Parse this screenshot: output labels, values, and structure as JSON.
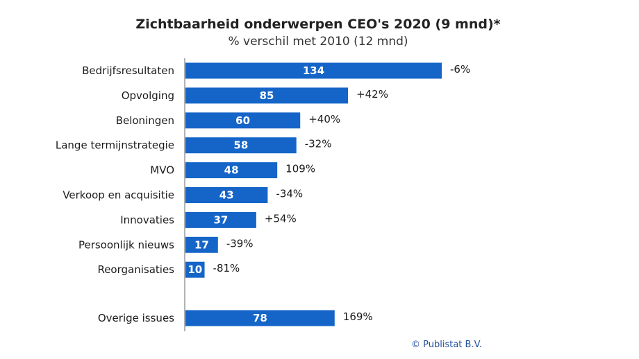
{
  "chart_data": {
    "type": "bar",
    "orientation": "horizontal",
    "title": "Zichtbaarheid onderwerpen CEO's 2020 (9 mnd)*",
    "subtitle": "% verschil met 2010 (12 mnd)",
    "categories": [
      "Bedrijfsresultaten",
      "Opvolging",
      "Beloningen",
      "Lange termijnstrategie",
      "MVO",
      "Verkoop en acquisitie",
      "Innovaties",
      "Persoonlijk nieuws",
      "Reorganisaties",
      "Overige issues"
    ],
    "values": [
      134,
      85,
      60,
      58,
      48,
      43,
      37,
      17,
      10,
      78
    ],
    "changes": [
      "-6%",
      "+42%",
      "+40%",
      "-32%",
      "109%",
      "-34%",
      "+54%",
      "-39%",
      "-81%",
      "169%"
    ],
    "bar_color": "#1565C8",
    "xlim": [
      0,
      134
    ],
    "grid": false
  },
  "credit": "© Publistat B.V."
}
